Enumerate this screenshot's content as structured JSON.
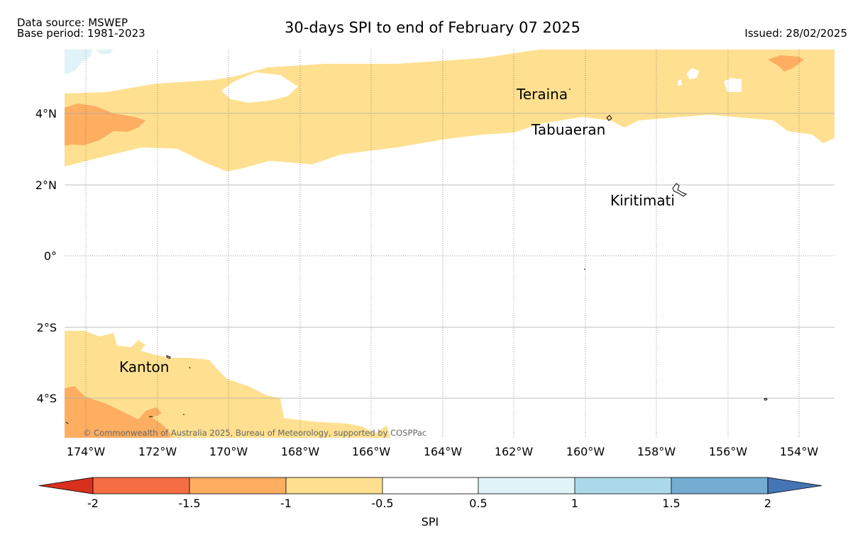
{
  "header": {
    "data_source": "Data source: MSWEP",
    "base_period": "Base period: 1981-2023",
    "title": "30-days SPI to end of February 07 2025",
    "issued": "Issued: 28/02/2025"
  },
  "map": {
    "lon_range": [
      -174.6,
      -153.0
    ],
    "lat_range": [
      -5.1,
      5.8
    ],
    "lon_ticks": [
      {
        "value": -174,
        "label": "174°W"
      },
      {
        "value": -172,
        "label": "172°W"
      },
      {
        "value": -170,
        "label": "170°W"
      },
      {
        "value": -168,
        "label": "168°W"
      },
      {
        "value": -166,
        "label": "166°W"
      },
      {
        "value": -164,
        "label": "164°W"
      },
      {
        "value": -162,
        "label": "162°W"
      },
      {
        "value": -160,
        "label": "160°W"
      },
      {
        "value": -158,
        "label": "158°W"
      },
      {
        "value": -156,
        "label": "156°W"
      },
      {
        "value": -154,
        "label": "154°W"
      }
    ],
    "lat_ticks": [
      {
        "value": 4,
        "label": "4°N"
      },
      {
        "value": 2,
        "label": "2°N"
      },
      {
        "value": 0,
        "label": "0°"
      },
      {
        "value": -2,
        "label": "2°S"
      },
      {
        "value": -4,
        "label": "4°S"
      }
    ],
    "places": [
      {
        "name": "Teraina",
        "lon": -162.0,
        "lat": 4.5
      },
      {
        "name": "Tabuaeran",
        "lon": -161.5,
        "lat": 3.5
      },
      {
        "name": "Kiritimati",
        "lon": -159.3,
        "lat": 1.5
      },
      {
        "name": "Kanton",
        "lon": -172.1,
        "lat": -3.3
      }
    ],
    "copyright": "© Commonwealth of Australia 2025, Bureau of Meteorology, supported by COSPPac"
  },
  "colorbar": {
    "label": "SPI",
    "ticks": [
      "-2",
      "-1.5",
      "-1",
      "-0.5",
      "0.5",
      "1",
      "1.5",
      "2"
    ],
    "colors": [
      "#d7301f",
      "#f46d43",
      "#fdae61",
      "#fee090",
      "#ffffff",
      "#e0f3f8",
      "#abd9e9",
      "#74add1",
      "#4575b4"
    ]
  }
}
